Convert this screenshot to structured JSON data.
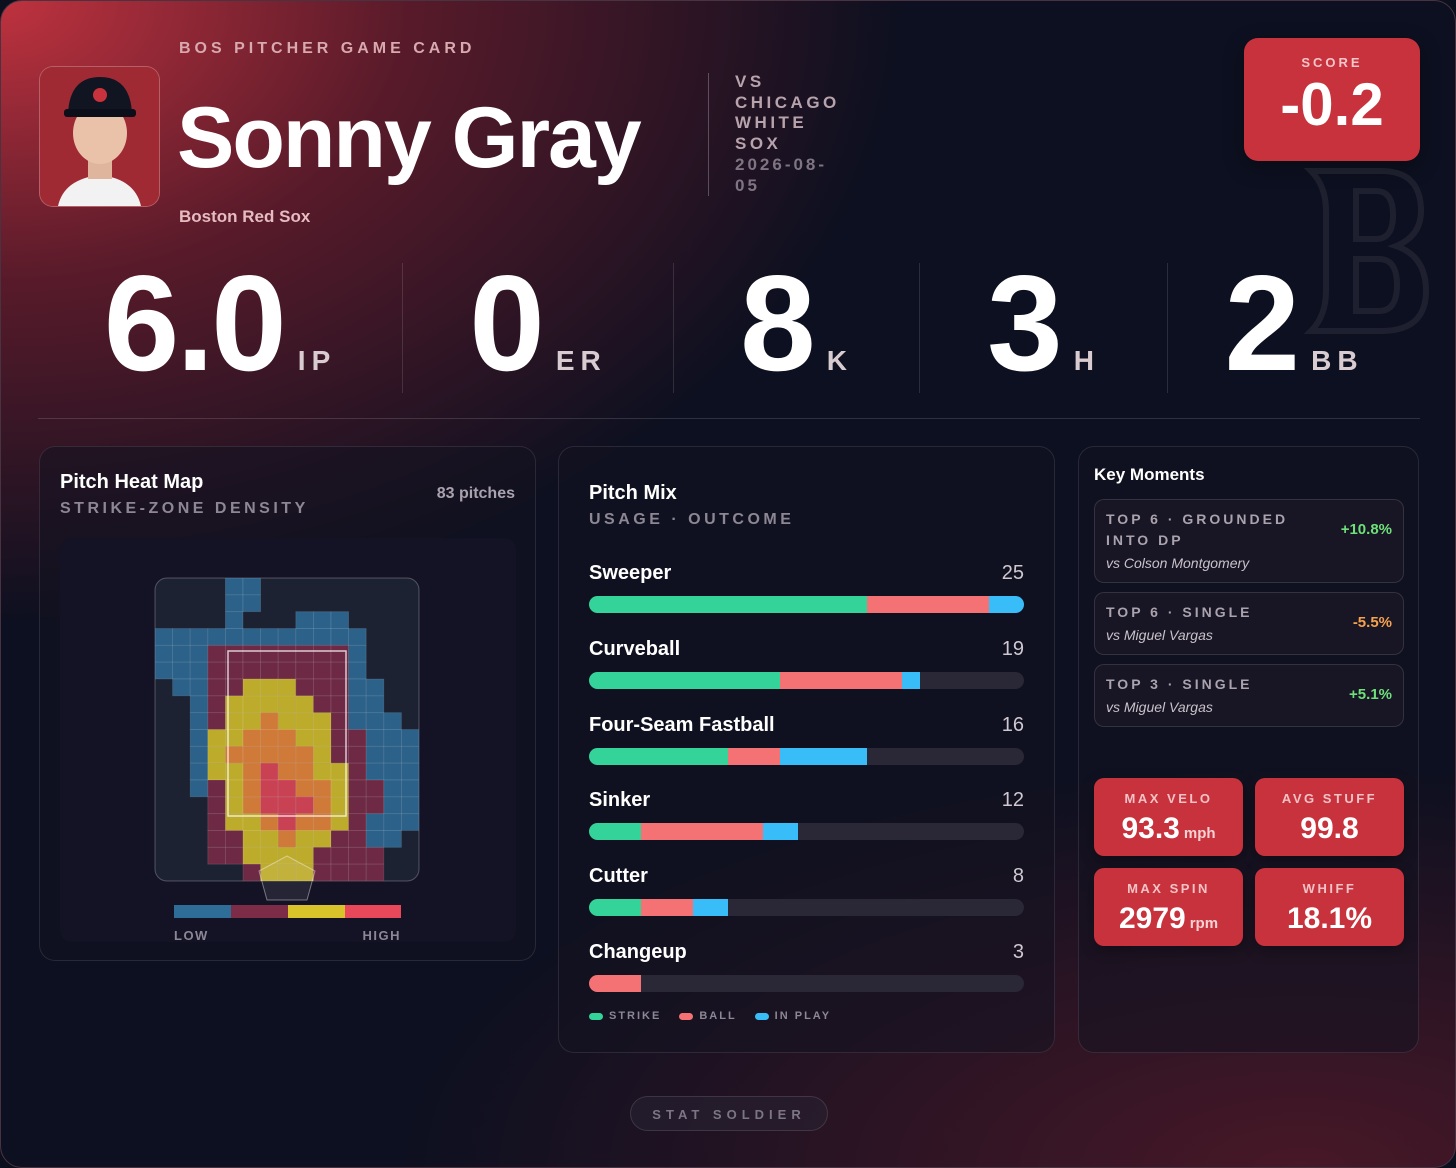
{
  "header": {
    "eyebrow": "BOS PITCHER GAME CARD",
    "name": "Sonny Gray",
    "team": "Boston Red Sox",
    "opponent": "VS CHICAGO WHITE SOX",
    "date": "2026-08-05"
  },
  "score": {
    "label": "SCORE",
    "value": "-0.2"
  },
  "stats": [
    {
      "value": "6.0",
      "label": "IP"
    },
    {
      "value": "0",
      "label": "ER"
    },
    {
      "value": "8",
      "label": "K"
    },
    {
      "value": "3",
      "label": "H"
    },
    {
      "value": "2",
      "label": "BB"
    }
  ],
  "heatmap": {
    "title": "Pitch Heat Map",
    "subtitle": "STRIKE-ZONE DENSITY",
    "count": "83 pitches",
    "low": "LOW",
    "high": "HIGH",
    "colors": [
      "#2f6d99",
      "#7d2c48",
      "#d9c32a",
      "#ef8a3a",
      "#e8485a"
    ],
    "density": [
      [
        0,
        0,
        0,
        0,
        1,
        1,
        0,
        0,
        0,
        0,
        0,
        0,
        0,
        0,
        0
      ],
      [
        0,
        0,
        0,
        0,
        1,
        1,
        0,
        0,
        0,
        0,
        0,
        0,
        0,
        0,
        0
      ],
      [
        0,
        0,
        0,
        0,
        1,
        0,
        0,
        0,
        1,
        1,
        1,
        0,
        0,
        0,
        0
      ],
      [
        1,
        1,
        1,
        1,
        1,
        1,
        1,
        1,
        1,
        1,
        1,
        1,
        0,
        0,
        0
      ],
      [
        1,
        1,
        1,
        2,
        2,
        2,
        2,
        2,
        2,
        2,
        2,
        1,
        0,
        0,
        0
      ],
      [
        1,
        1,
        1,
        2,
        2,
        2,
        2,
        2,
        2,
        2,
        2,
        1,
        0,
        0,
        0
      ],
      [
        0,
        1,
        1,
        2,
        2,
        3,
        3,
        3,
        2,
        2,
        2,
        1,
        1,
        0,
        0
      ],
      [
        0,
        0,
        1,
        2,
        3,
        3,
        3,
        3,
        3,
        2,
        2,
        1,
        1,
        0,
        0
      ],
      [
        0,
        0,
        1,
        2,
        3,
        3,
        4,
        3,
        3,
        3,
        2,
        1,
        1,
        1,
        0
      ],
      [
        0,
        0,
        1,
        3,
        3,
        4,
        4,
        4,
        3,
        3,
        2,
        2,
        1,
        1,
        1
      ],
      [
        0,
        0,
        1,
        3,
        4,
        4,
        4,
        4,
        4,
        3,
        2,
        2,
        1,
        1,
        1
      ],
      [
        0,
        0,
        1,
        3,
        3,
        4,
        5,
        4,
        4,
        3,
        3,
        2,
        1,
        1,
        1
      ],
      [
        0,
        0,
        1,
        2,
        3,
        4,
        5,
        5,
        4,
        4,
        3,
        2,
        2,
        1,
        1
      ],
      [
        0,
        0,
        0,
        2,
        3,
        4,
        5,
        5,
        5,
        4,
        3,
        2,
        2,
        1,
        1
      ],
      [
        0,
        0,
        0,
        2,
        3,
        3,
        4,
        5,
        4,
        4,
        3,
        2,
        1,
        1,
        1
      ],
      [
        0,
        0,
        0,
        2,
        2,
        3,
        3,
        4,
        3,
        3,
        2,
        2,
        1,
        1,
        0
      ],
      [
        0,
        0,
        0,
        2,
        2,
        3,
        3,
        3,
        3,
        2,
        2,
        2,
        2,
        0,
        0
      ],
      [
        0,
        0,
        0,
        0,
        0,
        2,
        3,
        3,
        3,
        2,
        2,
        2,
        2,
        0,
        0
      ]
    ]
  },
  "pitch_mix": {
    "title": "Pitch Mix",
    "subtitle": "USAGE · OUTCOME",
    "colors": {
      "strike": "#34d399",
      "ball": "#f47174",
      "in_play": "#38bdf8"
    },
    "legend": {
      "strike": "STRIKE",
      "ball": "BALL",
      "in_play": "IN PLAY"
    },
    "pitches": [
      {
        "name": "Sweeper",
        "count": 25,
        "strike": 16,
        "ball": 7,
        "in_play": 2
      },
      {
        "name": "Curveball",
        "count": 19,
        "strike": 11,
        "ball": 7,
        "in_play": 1
      },
      {
        "name": "Four-Seam Fastball",
        "count": 16,
        "strike": 8,
        "ball": 3,
        "in_play": 5
      },
      {
        "name": "Sinker",
        "count": 12,
        "strike": 3,
        "ball": 7,
        "in_play": 2
      },
      {
        "name": "Cutter",
        "count": 8,
        "strike": 3,
        "ball": 3,
        "in_play": 2
      },
      {
        "name": "Changeup",
        "count": 3,
        "strike": 0,
        "ball": 3,
        "in_play": 0
      }
    ]
  },
  "key_moments": {
    "title": "Key Moments",
    "items": [
      {
        "title": "TOP 6 · GROUNDED INTO DP",
        "batter": "vs Colson Montgomery",
        "delta": "+10.8%"
      },
      {
        "title": "TOP 6 · SINGLE",
        "batter": "vs Miguel Vargas",
        "delta": "-5.5%"
      },
      {
        "title": "TOP 3 · SINGLE",
        "batter": "vs Miguel Vargas",
        "delta": "+5.1%"
      }
    ]
  },
  "tiles": [
    {
      "label": "MAX VELO",
      "value": "93.3",
      "unit": "mph"
    },
    {
      "label": "AVG STUFF",
      "value": "99.8"
    },
    {
      "label": "MAX SPIN",
      "value": "2979",
      "unit": "rpm"
    },
    {
      "label": "WHIFF",
      "value": "18.1%"
    }
  ],
  "footer": "STAT SOLDIER"
}
